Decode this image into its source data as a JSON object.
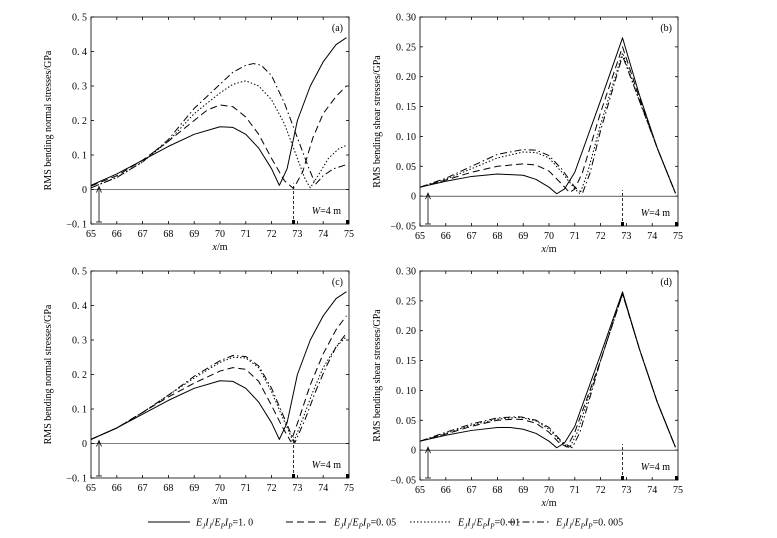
{
  "figure": {
    "legend": [
      {
        "label": "EJIJ/EPIP=1. 0",
        "text_E1": "E",
        "sub_J1": "J",
        "text_I1": "I",
        "sub_J2": "J",
        "text_slash": "/",
        "text_E2": "E",
        "sub_P1": "P",
        "text_I2": "I",
        "sub_P2": "P",
        "value": "=1. 0",
        "dash": "solid"
      },
      {
        "label": "EJIJ/EPIP=0. 05",
        "text_E1": "E",
        "sub_J1": "J",
        "text_I1": "I",
        "sub_J2": "J",
        "text_slash": "/",
        "text_E2": "E",
        "sub_P1": "P",
        "text_I2": "I",
        "sub_P2": "P",
        "value": "=0. 05",
        "dash": "dashed"
      },
      {
        "label": "EJIJ/EPIP=0. 01",
        "text_E1": "E",
        "sub_J1": "J",
        "text_I1": "I",
        "sub_J2": "J",
        "text_slash": "/",
        "text_E2": "E",
        "sub_P1": "P",
        "text_I2": "I",
        "sub_P2": "P",
        "value": "=0. 01",
        "dash": "dotted"
      },
      {
        "label": "EJIJ/EPIP=0. 005",
        "text_E1": "E",
        "sub_J1": "J",
        "text_I1": "I",
        "sub_J2": "J",
        "text_slash": "/",
        "text_E2": "E",
        "sub_P1": "P",
        "text_I2": "I",
        "sub_P2": "P",
        "value": "=0. 005",
        "dash": "dashdot"
      }
    ],
    "line_color": "#000000"
  },
  "chart_data": [
    {
      "type": "line",
      "panel_label": "(a)",
      "xlabel_x": "x",
      "xlabel_unit": "/m",
      "ylabel": "RMS bending normal stresses/GPa",
      "xlim": [
        65,
        75
      ],
      "ylim": [
        -0.1,
        0.5
      ],
      "xticks": [
        "65",
        "66",
        "67",
        "68",
        "69",
        "70",
        "71",
        "72",
        "73",
        "74",
        "75"
      ],
      "yticks": [
        "−0. 1",
        "0",
        "0. 1",
        "0. 2",
        "0. 3",
        "0. 4",
        "0. 5"
      ],
      "ytick_values": [
        -0.1,
        0,
        0.1,
        0.2,
        0.3,
        0.4,
        0.5
      ],
      "annotation_W": "W",
      "annotation_rest": "=4 m",
      "marker_x": 72.85,
      "series": [
        {
          "x": [
            65,
            66,
            67,
            68,
            69,
            70,
            70.5,
            71,
            71.5,
            72,
            72.3,
            72.6,
            73,
            73.5,
            74,
            74.5,
            74.9
          ],
          "y": [
            0.012,
            0.045,
            0.085,
            0.125,
            0.16,
            0.182,
            0.18,
            0.16,
            0.12,
            0.06,
            0.012,
            0.06,
            0.2,
            0.3,
            0.37,
            0.42,
            0.44
          ]
        },
        {
          "x": [
            65,
            66,
            67,
            68,
            69,
            69.5,
            70,
            70.5,
            71,
            71.5,
            72,
            72.5,
            72.85,
            73.2,
            73.6,
            74,
            74.5,
            74.9
          ],
          "y": [
            0.01,
            0.04,
            0.085,
            0.14,
            0.2,
            0.23,
            0.245,
            0.24,
            0.21,
            0.16,
            0.09,
            0.025,
            0.003,
            0.05,
            0.15,
            0.22,
            0.27,
            0.3
          ]
        },
        {
          "x": [
            65,
            66,
            67,
            68,
            69,
            70,
            70.5,
            71,
            71.5,
            72,
            72.5,
            73,
            73.3,
            73.5,
            73.8,
            74.2,
            74.6,
            74.9
          ],
          "y": [
            0.005,
            0.035,
            0.08,
            0.14,
            0.22,
            0.28,
            0.305,
            0.315,
            0.3,
            0.26,
            0.19,
            0.09,
            0.03,
            0.005,
            0.04,
            0.09,
            0.118,
            0.128
          ]
        },
        {
          "x": [
            65,
            66,
            67,
            68,
            69,
            70,
            70.5,
            71,
            71.3,
            71.6,
            72,
            72.5,
            73,
            73.4,
            73.7,
            74,
            74.4,
            74.9
          ],
          "y": [
            0.005,
            0.035,
            0.08,
            0.145,
            0.235,
            0.305,
            0.34,
            0.36,
            0.365,
            0.36,
            0.33,
            0.25,
            0.15,
            0.07,
            0.015,
            0.04,
            0.06,
            0.072
          ]
        }
      ]
    },
    {
      "type": "line",
      "panel_label": "(b)",
      "xlabel_x": "x",
      "xlabel_unit": "/m",
      "ylabel": "RMS bending shear stresses/GPa",
      "xlim": [
        65,
        75
      ],
      "ylim": [
        -0.05,
        0.3
      ],
      "xticks": [
        "65",
        "66",
        "67",
        "68",
        "69",
        "70",
        "71",
        "72",
        "73",
        "74",
        "75"
      ],
      "yticks": [
        "−0. 05",
        "0",
        "0. 05",
        "0. 10",
        "0. 15",
        "0. 20",
        "0. 25",
        "0. 30"
      ],
      "ytick_values": [
        -0.05,
        0,
        0.05,
        0.1,
        0.15,
        0.2,
        0.25,
        0.3
      ],
      "annotation_W": "W",
      "annotation_rest": "=4 m",
      "marker_x": 72.85,
      "series": [
        {
          "x": [
            65,
            66,
            67,
            68,
            69,
            69.5,
            70,
            70.3,
            70.6,
            71,
            72,
            72.85,
            73.5,
            74.2,
            74.9
          ],
          "y": [
            0.015,
            0.025,
            0.033,
            0.037,
            0.035,
            0.028,
            0.015,
            0.004,
            0.012,
            0.04,
            0.16,
            0.265,
            0.17,
            0.08,
            0.005
          ]
        },
        {
          "x": [
            65,
            66,
            67,
            68,
            69,
            69.5,
            70,
            70.5,
            70.8,
            71,
            71.3,
            72,
            72.85,
            73.5,
            74.2,
            74.9
          ],
          "y": [
            0.015,
            0.027,
            0.04,
            0.05,
            0.054,
            0.052,
            0.042,
            0.02,
            0.006,
            0.012,
            0.04,
            0.14,
            0.25,
            0.165,
            0.08,
            0.005
          ]
        },
        {
          "x": [
            65,
            66,
            67,
            68,
            69,
            69.5,
            70,
            70.5,
            71,
            71.2,
            71.5,
            72,
            72.85,
            73.5,
            74.2,
            74.9
          ],
          "y": [
            0.015,
            0.028,
            0.046,
            0.064,
            0.074,
            0.073,
            0.064,
            0.04,
            0.012,
            0.004,
            0.04,
            0.12,
            0.24,
            0.16,
            0.08,
            0.005
          ]
        },
        {
          "x": [
            65,
            66,
            67,
            68,
            69,
            69.5,
            70,
            70.5,
            71,
            71.3,
            71.6,
            72,
            72.85,
            73.5,
            74.2,
            74.9
          ],
          "y": [
            0.015,
            0.03,
            0.05,
            0.07,
            0.078,
            0.077,
            0.068,
            0.045,
            0.015,
            0.005,
            0.04,
            0.11,
            0.235,
            0.16,
            0.08,
            0.005
          ]
        }
      ]
    },
    {
      "type": "line",
      "panel_label": "(c)",
      "xlabel_x": "x",
      "xlabel_unit": "/m",
      "ylabel": "RMS bending normal stresses/GPa",
      "xlim": [
        65,
        75
      ],
      "ylim": [
        -0.1,
        0.5
      ],
      "xticks": [
        "65",
        "66",
        "67",
        "68",
        "69",
        "70",
        "71",
        "72",
        "73",
        "74",
        "75"
      ],
      "yticks": [
        "−0. 1",
        "0",
        "0. 1",
        "0. 2",
        "0. 3",
        "0. 4",
        "0. 5"
      ],
      "ytick_values": [
        -0.1,
        0,
        0.1,
        0.2,
        0.3,
        0.4,
        0.5
      ],
      "annotation_W": "W",
      "annotation_rest": "=4 m",
      "marker_x": 72.85,
      "series": [
        {
          "x": [
            65,
            66,
            67,
            68,
            69,
            70,
            70.5,
            71,
            71.5,
            72,
            72.3,
            72.6,
            73,
            73.5,
            74,
            74.5,
            74.9
          ],
          "y": [
            0.012,
            0.045,
            0.085,
            0.125,
            0.16,
            0.182,
            0.18,
            0.16,
            0.12,
            0.06,
            0.012,
            0.06,
            0.2,
            0.3,
            0.37,
            0.42,
            0.44
          ]
        },
        {
          "x": [
            65,
            66,
            67,
            68,
            69,
            70,
            70.5,
            71,
            71.5,
            72,
            72.4,
            72.75,
            73.1,
            73.5,
            74,
            74.5,
            74.9
          ],
          "y": [
            0.012,
            0.045,
            0.09,
            0.135,
            0.175,
            0.21,
            0.22,
            0.215,
            0.18,
            0.11,
            0.05,
            0.005,
            0.08,
            0.17,
            0.26,
            0.33,
            0.37
          ]
        },
        {
          "x": [
            65,
            66,
            67,
            68,
            69,
            70,
            70.5,
            71,
            71.5,
            72,
            72.4,
            72.85,
            73.2,
            73.6,
            74,
            74.5,
            74.9
          ],
          "y": [
            0.012,
            0.045,
            0.09,
            0.14,
            0.19,
            0.235,
            0.25,
            0.248,
            0.22,
            0.15,
            0.08,
            0.004,
            0.07,
            0.15,
            0.22,
            0.28,
            0.31
          ]
        },
        {
          "x": [
            65,
            66,
            67,
            68,
            69,
            70,
            70.5,
            71,
            71.5,
            72,
            72.4,
            72.9,
            73.3,
            73.7,
            74.1,
            74.5,
            74.9
          ],
          "y": [
            0.012,
            0.045,
            0.09,
            0.14,
            0.195,
            0.24,
            0.255,
            0.252,
            0.225,
            0.16,
            0.09,
            0.002,
            0.07,
            0.15,
            0.22,
            0.28,
            0.32
          ]
        }
      ]
    },
    {
      "type": "line",
      "panel_label": "(d)",
      "xlabel_x": "x",
      "xlabel_unit": "/m",
      "ylabel": "RMS bending shear stresses/GPa",
      "xlim": [
        65,
        75
      ],
      "ylim": [
        -0.05,
        0.3
      ],
      "xticks": [
        "65",
        "66",
        "67",
        "68",
        "69",
        "70",
        "71",
        "72",
        "73",
        "74",
        "75"
      ],
      "yticks": [
        "−0. 05",
        "0",
        "0. 05",
        "0. 10",
        "0. 15",
        "0. 20",
        "0. 25",
        "0. 30"
      ],
      "ytick_values": [
        -0.05,
        0,
        0.05,
        0.1,
        0.15,
        0.2,
        0.25,
        0.3
      ],
      "annotation_W": "W",
      "annotation_rest": "=4 m",
      "marker_x": 72.85,
      "series": [
        {
          "x": [
            65,
            66,
            67,
            68,
            68.5,
            69,
            69.5,
            70,
            70.3,
            70.6,
            71,
            72,
            72.85,
            73.5,
            74.2,
            74.9
          ],
          "y": [
            0.015,
            0.025,
            0.033,
            0.038,
            0.038,
            0.035,
            0.028,
            0.015,
            0.004,
            0.012,
            0.04,
            0.16,
            0.265,
            0.17,
            0.08,
            0.005
          ]
        },
        {
          "x": [
            65,
            66,
            67,
            68,
            68.7,
            69,
            69.5,
            70,
            70.4,
            70.7,
            71,
            72,
            72.85,
            73.5,
            74.2,
            74.9
          ],
          "y": [
            0.015,
            0.027,
            0.04,
            0.05,
            0.052,
            0.051,
            0.045,
            0.03,
            0.012,
            0.005,
            0.03,
            0.15,
            0.262,
            0.17,
            0.08,
            0.005
          ]
        },
        {
          "x": [
            65,
            66,
            67,
            68,
            68.8,
            69,
            69.5,
            70,
            70.5,
            70.8,
            71.1,
            72,
            72.85,
            73.5,
            74.2,
            74.9
          ],
          "y": [
            0.015,
            0.028,
            0.042,
            0.052,
            0.055,
            0.054,
            0.049,
            0.035,
            0.012,
            0.004,
            0.03,
            0.15,
            0.262,
            0.17,
            0.08,
            0.005
          ]
        },
        {
          "x": [
            65,
            66,
            67,
            68,
            68.8,
            69,
            69.5,
            70,
            70.5,
            70.9,
            71.2,
            72,
            72.85,
            73.5,
            74.2,
            74.9
          ],
          "y": [
            0.015,
            0.03,
            0.044,
            0.054,
            0.056,
            0.055,
            0.05,
            0.038,
            0.014,
            0.004,
            0.03,
            0.15,
            0.262,
            0.17,
            0.08,
            0.005
          ]
        }
      ]
    }
  ]
}
